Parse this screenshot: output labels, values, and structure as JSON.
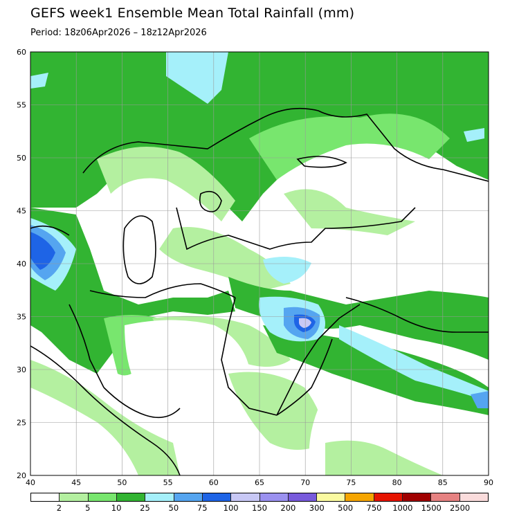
{
  "title": "GEFS week1 Ensemble Mean Total Rainfall (mm)",
  "subtitle": "Period: 18z06Apr2026 – 18z12Apr2026",
  "map": {
    "lon_range": [
      40,
      90
    ],
    "lat_range": [
      20,
      60
    ],
    "lon_ticks": [
      "40",
      "45",
      "50",
      "55",
      "60",
      "65",
      "70",
      "75",
      "80",
      "85",
      "90"
    ],
    "lat_ticks": [
      "20",
      "25",
      "30",
      "35",
      "40",
      "45",
      "50",
      "55",
      "60"
    ],
    "grid": true
  },
  "legend": {
    "colors": [
      "#ffffff",
      "#b4f0a0",
      "#78e66e",
      "#32b432",
      "#a5f0fa",
      "#55a5f0",
      "#1e64e6",
      "#c8c8f5",
      "#9b91f0",
      "#785adc",
      "#fafaa0",
      "#f5a500",
      "#e61400",
      "#a00000",
      "#e68282",
      "#fadcdc"
    ],
    "labels": [
      "2",
      "5",
      "10",
      "25",
      "50",
      "75",
      "100",
      "150",
      "200",
      "300",
      "500",
      "750",
      "1000",
      "1500",
      "2500"
    ]
  }
}
